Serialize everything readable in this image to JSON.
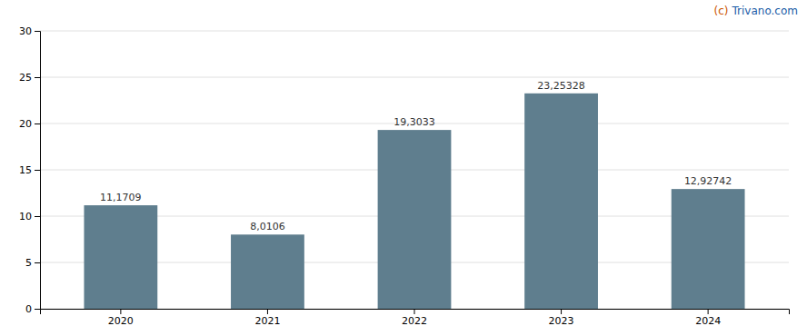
{
  "chart_data": {
    "type": "bar",
    "categories": [
      "2020",
      "2021",
      "2022",
      "2023",
      "2024"
    ],
    "values": [
      11.1709,
      8.0106,
      19.3033,
      23.25328,
      12.92742
    ],
    "value_labels": [
      "11,1709",
      "8,0106",
      "19,3033",
      "23,25328",
      "12,92742"
    ],
    "color": "#5f7e8e",
    "ylim": [
      0,
      30
    ],
    "yticks": [
      0,
      5,
      10,
      15,
      20,
      25,
      30
    ],
    "grid": true,
    "data_labels": true,
    "annotations": [
      {
        "text": "(c)",
        "color": "#cc5500"
      },
      {
        "text": "Trivano.com",
        "color": "#1a5ba6"
      }
    ]
  }
}
